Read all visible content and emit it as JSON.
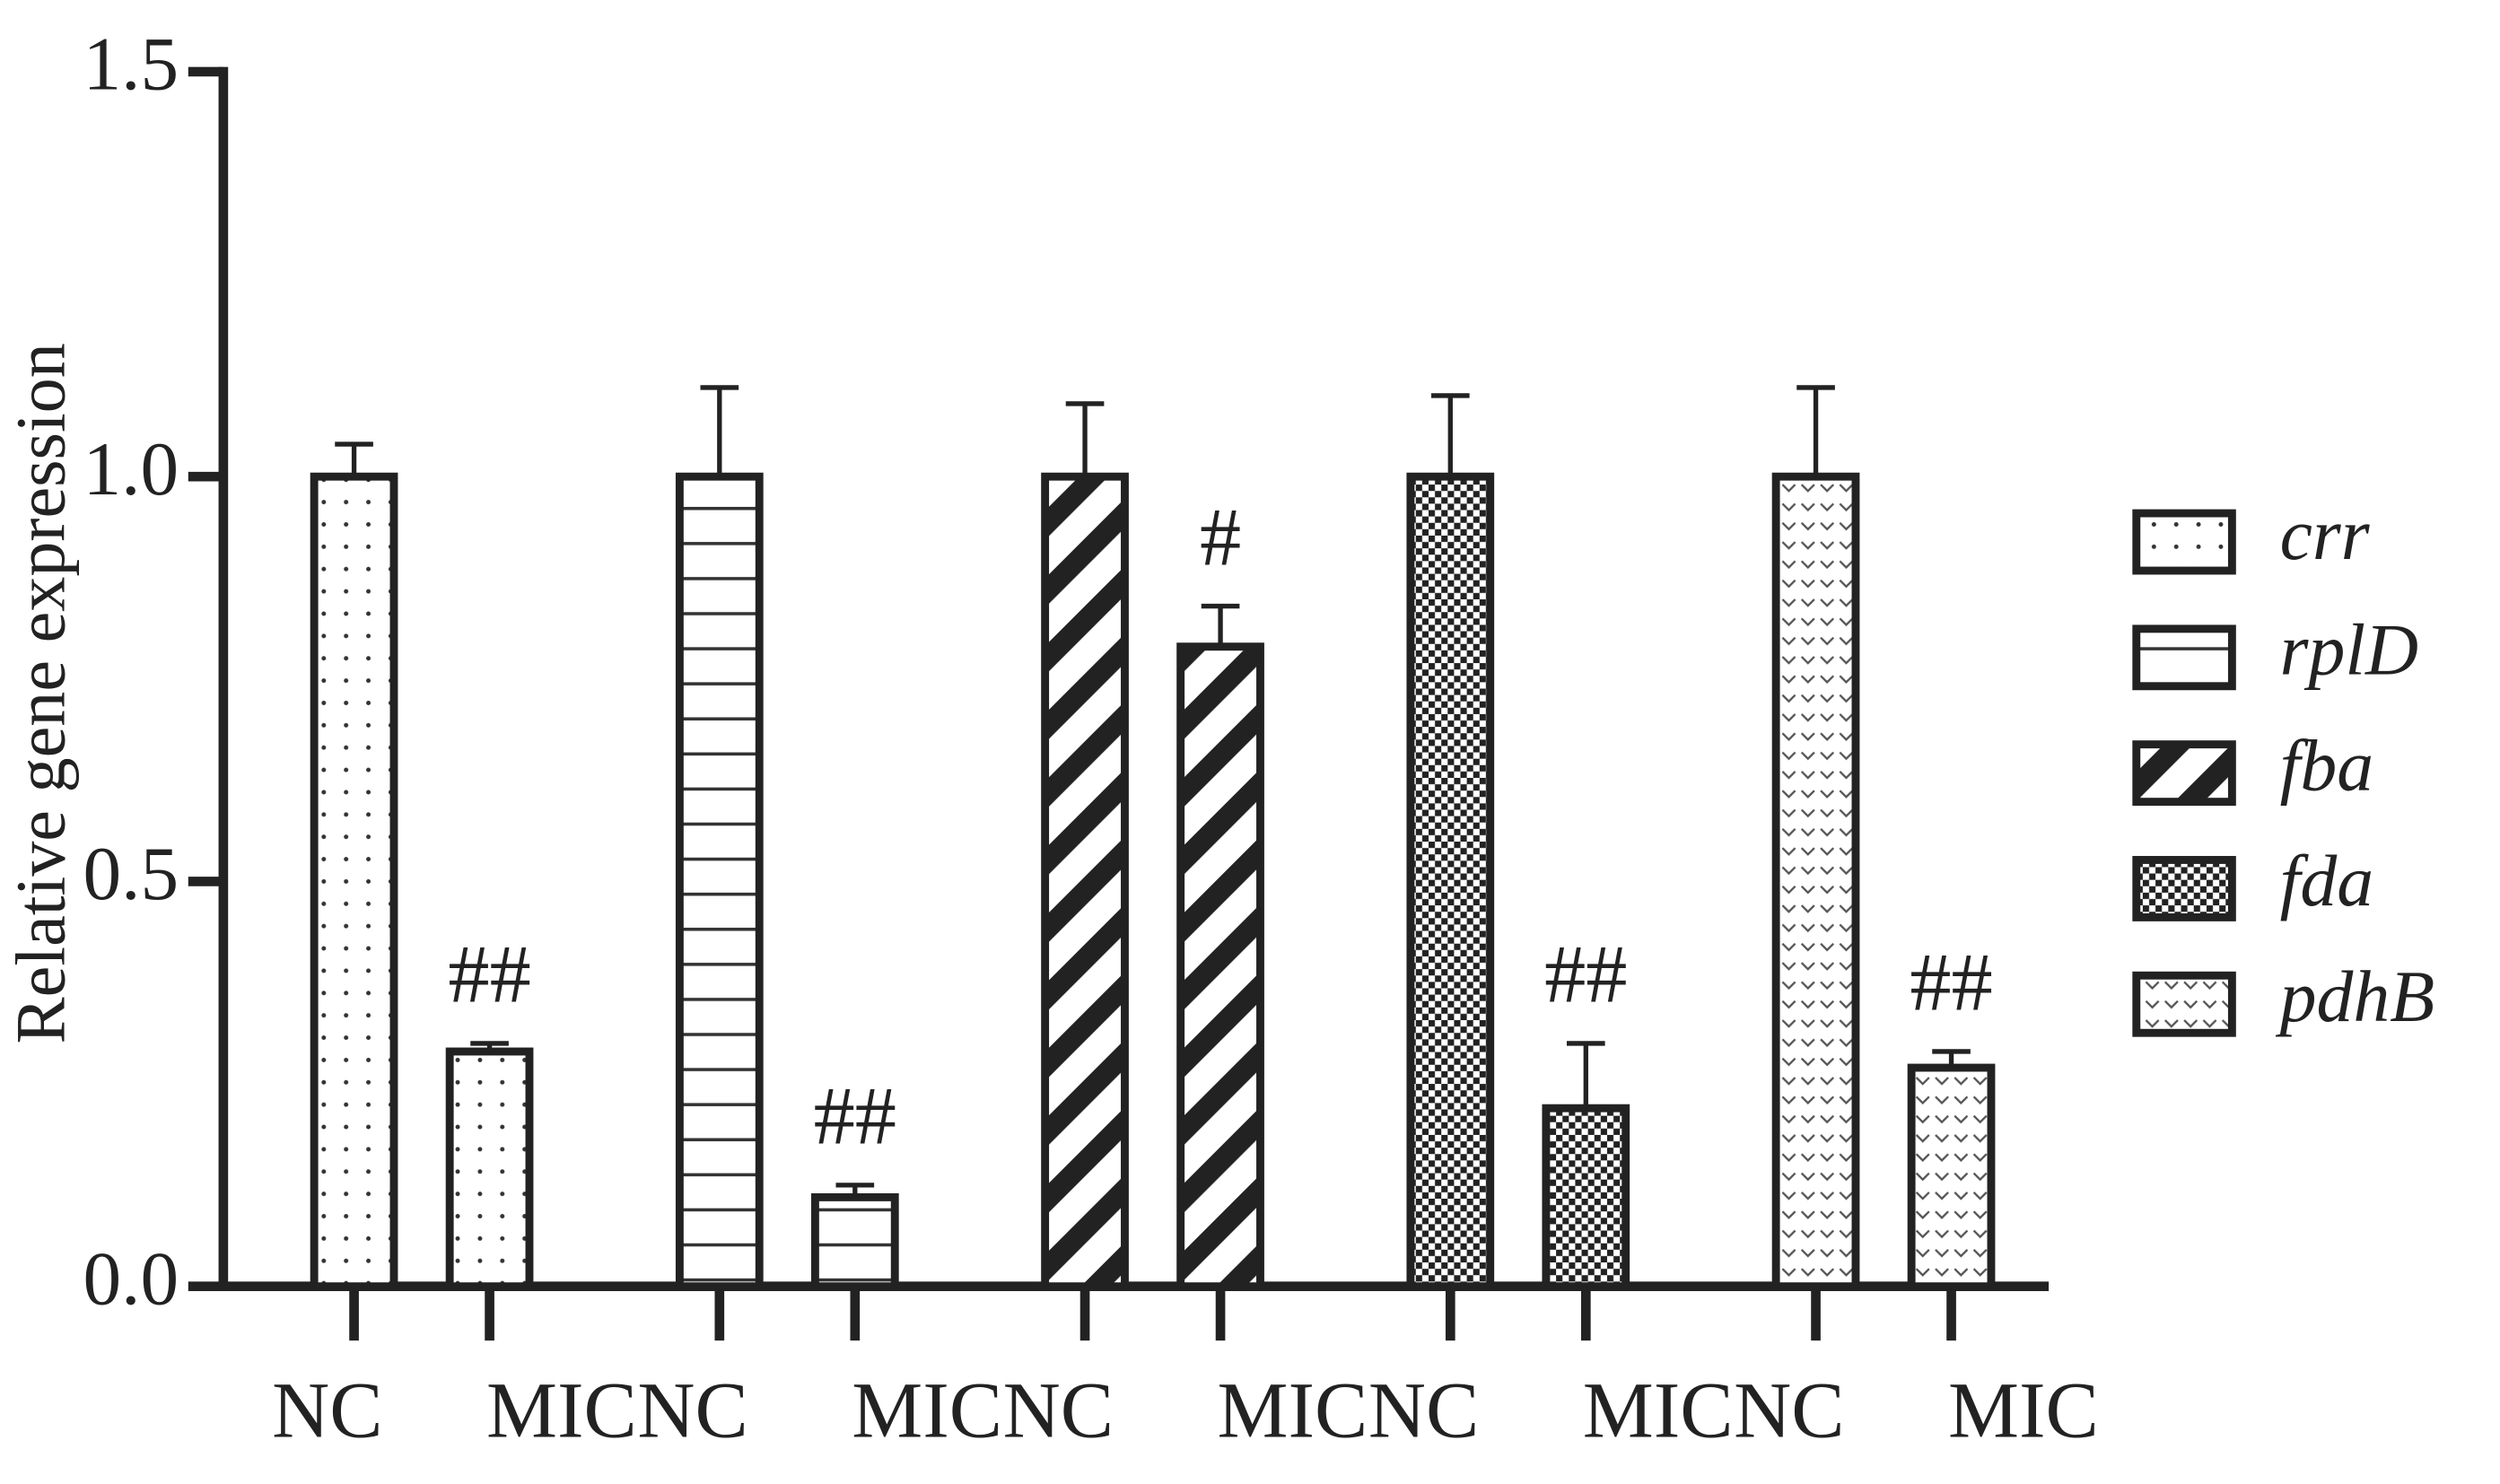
{
  "chart_data": {
    "type": "bar",
    "y_label": "Relative gene expression",
    "categories": [
      "NC",
      "MIC"
    ],
    "ylim": [
      0,
      1.5
    ],
    "yticks": [
      {
        "value": 0,
        "label": "0.0"
      },
      0.5,
      {
        "value": 1,
        "label": "1.0"
      },
      1.5
    ],
    "legend": "right",
    "color": "#222222",
    "series": [
      {
        "name": "crr",
        "pattern": "dots",
        "values": [
          1.0,
          0.29
        ],
        "errors": [
          0.04,
          0.01
        ],
        "significance": [
          null,
          "##"
        ]
      },
      {
        "name": "rplD",
        "pattern": "hlines",
        "values": [
          1.0,
          0.11
        ],
        "errors": [
          0.11,
          0.015
        ],
        "significance": [
          null,
          "##"
        ]
      },
      {
        "name": "fba",
        "pattern": "diagonal",
        "values": [
          1.0,
          0.79
        ],
        "errors": [
          0.09,
          0.05
        ],
        "significance": [
          null,
          "#"
        ]
      },
      {
        "name": "fda",
        "pattern": "checker",
        "values": [
          1.0,
          0.22
        ],
        "errors": [
          0.1,
          0.08
        ],
        "significance": [
          null,
          "##"
        ]
      },
      {
        "name": "pdhB",
        "pattern": "zigzag",
        "values": [
          1.0,
          0.27
        ],
        "errors": [
          0.11,
          0.02
        ],
        "significance": [
          null,
          "##"
        ]
      }
    ]
  }
}
